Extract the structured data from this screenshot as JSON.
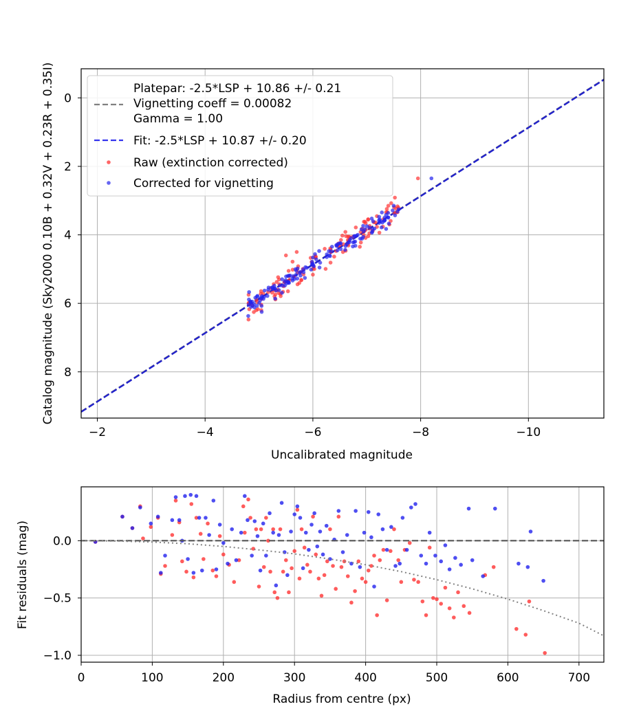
{
  "chart_data": [
    {
      "type": "scatter",
      "xlabel": "Uncalibrated magnitude",
      "ylabel": "Catalog magnitude (Sky2000 0.10B + 0.32V + 0.23R + 0.35I)",
      "xlim": [
        -1.7,
        -11.4
      ],
      "ylim": [
        9.35,
        -0.85
      ],
      "x_inverted": true,
      "y_inverted": true,
      "xticks": [
        -2,
        -4,
        -6,
        -8,
        -10
      ],
      "xtick_labels": [
        "−2",
        "−4",
        "−6",
        "−8",
        "−10"
      ],
      "yticks": [
        0,
        2,
        4,
        6,
        8
      ],
      "ytick_labels": [
        "0",
        "2",
        "4",
        "6",
        "8"
      ],
      "grid": true,
      "legend_placement": "upper-left",
      "legend": [
        {
          "label": "Platepar: -2.5*LSP + 10.86 +/- 0.21\nVignetting coeff = 0.00082\nGamma = 1.00",
          "style": "dashed",
          "color": "#808080"
        },
        {
          "label": "Fit: -2.5*LSP + 10.87 +/- 0.20",
          "style": "dashed",
          "color": "#3333ee"
        },
        {
          "label": "Raw (extinction corrected)",
          "style": "marker",
          "color": "#ff3333"
        },
        {
          "label": "Corrected for vignetting",
          "style": "marker",
          "color": "#3333ee"
        }
      ],
      "series": [
        {
          "name": "Platepar: -2.5*LSP + 10.86 +/- 0.21",
          "kind": "line",
          "slope": 1,
          "intercept": 10.86,
          "color": "#808080"
        },
        {
          "name": "Fit: -2.5*LSP + 10.87 +/- 0.20",
          "kind": "line",
          "slope": 1,
          "intercept": 10.87,
          "color": "#2222cc"
        },
        {
          "name": "Raw (extinction corrected)",
          "kind": "scatter",
          "color": "#ff3333",
          "cluster": {
            "x_range": [
              -4.8,
              -7.6
            ],
            "intercept": 10.87,
            "spread": 0.35,
            "count": 130
          },
          "extra_points": [
            [
              -7.95,
              2.35
            ],
            [
              -7.4,
              3.15
            ],
            [
              -4.95,
              6.2
            ],
            [
              -5.5,
              4.6
            ],
            [
              -5.7,
              4.5
            ]
          ]
        },
        {
          "name": "Corrected for vignetting",
          "kind": "scatter",
          "color": "#2222ee",
          "cluster": {
            "x_range": [
              -4.8,
              -7.6
            ],
            "intercept": 10.87,
            "spread": 0.2,
            "count": 150
          },
          "extra_points": [
            [
              -8.2,
              2.35
            ],
            [
              -7.5,
              3.15
            ],
            [
              -5.05,
              6.25
            ]
          ]
        }
      ]
    },
    {
      "type": "scatter",
      "xlabel": "Radius from centre (px)",
      "ylabel": "Fit residuals (mag)",
      "xlim": [
        0,
        735
      ],
      "ylim": [
        -1.06,
        0.47
      ],
      "xticks": [
        0,
        100,
        200,
        300,
        400,
        500,
        600,
        700
      ],
      "xtick_labels": [
        "0",
        "100",
        "200",
        "300",
        "400",
        "500",
        "600",
        "700"
      ],
      "yticks": [
        0.0,
        -0.5,
        -1.0
      ],
      "ytick_labels": [
        "0.0",
        "−0.5",
        "−1.0"
      ],
      "grid": true,
      "series": [
        {
          "name": "Zero line",
          "kind": "line",
          "style": "dashed",
          "color": "#555555",
          "points": [
            [
              0,
              0
            ],
            [
              735,
              0
            ]
          ]
        },
        {
          "name": "Vignetting model",
          "kind": "line",
          "style": "dotted",
          "color": "#808080",
          "points": [
            [
              0,
              0
            ],
            [
              50,
              -0.003
            ],
            [
              100,
              -0.012
            ],
            [
              150,
              -0.027
            ],
            [
              200,
              -0.05
            ],
            [
              250,
              -0.08
            ],
            [
              300,
              -0.115
            ],
            [
              350,
              -0.16
            ],
            [
              400,
              -0.21
            ],
            [
              450,
              -0.27
            ],
            [
              500,
              -0.34
            ],
            [
              550,
              -0.42
            ],
            [
              600,
              -0.51
            ],
            [
              650,
              -0.61
            ],
            [
              700,
              -0.72
            ],
            [
              735,
              -0.83
            ]
          ]
        },
        {
          "name": "Raw (extinction corrected)",
          "kind": "scatter",
          "color": "#ff3333",
          "points": [
            [
              20,
              -0.01
            ],
            [
              58,
              0.21
            ],
            [
              72,
              0.11
            ],
            [
              83,
              0.3
            ],
            [
              87,
              0.02
            ],
            [
              98,
              0.12
            ],
            [
              108,
              0.2
            ],
            [
              112,
              -0.29
            ],
            [
              118,
              -0.22
            ],
            [
              128,
              0.05
            ],
            [
              133,
              0.35
            ],
            [
              138,
              0.16
            ],
            [
              142,
              -0.18
            ],
            [
              148,
              -0.27
            ],
            [
              155,
              0.32
            ],
            [
              158,
              -0.32
            ],
            [
              162,
              0.2
            ],
            [
              168,
              0.06
            ],
            [
              172,
              -0.16
            ],
            [
              178,
              0.15
            ],
            [
              185,
              -0.26
            ],
            [
              190,
              -0.31
            ],
            [
              195,
              0.04
            ],
            [
              200,
              -0.12
            ],
            [
              208,
              -0.21
            ],
            [
              215,
              -0.36
            ],
            [
              222,
              -0.17
            ],
            [
              228,
              0.3
            ],
            [
              230,
              0.07
            ],
            [
              235,
              0.36
            ],
            [
              238,
              0.2
            ],
            [
              242,
              -0.07
            ],
            [
              246,
              0.1
            ],
            [
              250,
              -0.4
            ],
            [
              253,
              0.1
            ],
            [
              257,
              -0.23
            ],
            [
              260,
              0.2
            ],
            [
              263,
              0.0
            ],
            [
              266,
              -0.27
            ],
            [
              270,
              0.1
            ],
            [
              272,
              -0.45
            ],
            [
              276,
              -0.5
            ],
            [
              280,
              0.1
            ],
            [
              284,
              -0.27
            ],
            [
              288,
              -0.17
            ],
            [
              292,
              -0.45
            ],
            [
              296,
              -0.24
            ],
            [
              300,
              -0.09
            ],
            [
              304,
              0.27
            ],
            [
              307,
              -0.33
            ],
            [
              310,
              0.1
            ],
            [
              314,
              -0.06
            ],
            [
              318,
              -0.21
            ],
            [
              322,
              -0.27
            ],
            [
              326,
              0.21
            ],
            [
              330,
              -0.12
            ],
            [
              334,
              -0.33
            ],
            [
              338,
              -0.48
            ],
            [
              342,
              -0.3
            ],
            [
              346,
              -0.18
            ],
            [
              350,
              0.1
            ],
            [
              354,
              -0.22
            ],
            [
              358,
              -0.42
            ],
            [
              362,
              0.21
            ],
            [
              366,
              -0.23
            ],
            [
              370,
              -0.18
            ],
            [
              375,
              -0.31
            ],
            [
              380,
              -0.54
            ],
            [
              385,
              -0.44
            ],
            [
              390,
              -0.18
            ],
            [
              395,
              -0.33
            ],
            [
              400,
              -0.36
            ],
            [
              404,
              -0.26
            ],
            [
              408,
              -0.22
            ],
            [
              412,
              -0.13
            ],
            [
              416,
              -0.65
            ],
            [
              420,
              -0.17
            ],
            [
              425,
              -0.08
            ],
            [
              430,
              -0.52
            ],
            [
              435,
              -0.09
            ],
            [
              440,
              0.1
            ],
            [
              446,
              -0.17
            ],
            [
              450,
              -0.36
            ],
            [
              455,
              -0.08
            ],
            [
              462,
              -0.02
            ],
            [
              468,
              -0.34
            ],
            [
              474,
              -0.36
            ],
            [
              480,
              -0.53
            ],
            [
              485,
              -0.65
            ],
            [
              490,
              -0.06
            ],
            [
              495,
              -0.5
            ],
            [
              500,
              -0.51
            ],
            [
              506,
              -0.55
            ],
            [
              512,
              -0.41
            ],
            [
              518,
              -0.59
            ],
            [
              524,
              -0.67
            ],
            [
              530,
              -0.45
            ],
            [
              538,
              -0.57
            ],
            [
              546,
              -0.63
            ],
            [
              568,
              -0.3
            ],
            [
              580,
              -0.23
            ],
            [
              612,
              -0.77
            ],
            [
              625,
              -0.82
            ],
            [
              630,
              -0.53
            ],
            [
              652,
              -0.98
            ]
          ]
        },
        {
          "name": "Corrected for vignetting",
          "kind": "scatter",
          "color": "#2222ee",
          "points": [
            [
              20,
              -0.01
            ],
            [
              58,
              0.21
            ],
            [
              72,
              0.11
            ],
            [
              83,
              0.29
            ],
            [
              98,
              0.15
            ],
            [
              108,
              0.21
            ],
            [
              112,
              -0.28
            ],
            [
              118,
              -0.13
            ],
            [
              128,
              0.18
            ],
            [
              133,
              0.38
            ],
            [
              138,
              0.18
            ],
            [
              142,
              0.0
            ],
            [
              146,
              0.39
            ],
            [
              150,
              -0.16
            ],
            [
              154,
              0.4
            ],
            [
              158,
              -0.28
            ],
            [
              162,
              0.39
            ],
            [
              166,
              0.2
            ],
            [
              170,
              -0.26
            ],
            [
              175,
              0.2
            ],
            [
              180,
              0.05
            ],
            [
              186,
              0.35
            ],
            [
              190,
              -0.25
            ],
            [
              195,
              0.14
            ],
            [
              200,
              -0.02
            ],
            [
              206,
              -0.2
            ],
            [
              212,
              0.1
            ],
            [
              218,
              -0.17
            ],
            [
              225,
              0.07
            ],
            [
              230,
              0.39
            ],
            [
              234,
              0.18
            ],
            [
              240,
              -0.13
            ],
            [
              244,
              0.17
            ],
            [
              248,
              0.04
            ],
            [
              252,
              -0.26
            ],
            [
              256,
              0.15
            ],
            [
              260,
              -0.13
            ],
            [
              265,
              0.24
            ],
            [
              270,
              0.07
            ],
            [
              274,
              -0.39
            ],
            [
              278,
              0.05
            ],
            [
              282,
              0.33
            ],
            [
              286,
              -0.1
            ],
            [
              290,
              -0.3
            ],
            [
              295,
              0.08
            ],
            [
              300,
              0.23
            ],
            [
              304,
              0.3
            ],
            [
              308,
              0.2
            ],
            [
              312,
              -0.24
            ],
            [
              316,
              0.07
            ],
            [
              320,
              -0.08
            ],
            [
              324,
              0.14
            ],
            [
              328,
              0.24
            ],
            [
              332,
              -0.05
            ],
            [
              336,
              0.08
            ],
            [
              340,
              -0.12
            ],
            [
              345,
              0.13
            ],
            [
              350,
              -0.16
            ],
            [
              356,
              0.01
            ],
            [
              362,
              0.26
            ],
            [
              368,
              -0.1
            ],
            [
              374,
              0.05
            ],
            [
              380,
              -0.2
            ],
            [
              386,
              0.26
            ],
            [
              392,
              -0.23
            ],
            [
              398,
              0.07
            ],
            [
              404,
              0.25
            ],
            [
              408,
              0.03
            ],
            [
              412,
              -0.4
            ],
            [
              418,
              0.23
            ],
            [
              424,
              0.1
            ],
            [
              430,
              -0.08
            ],
            [
              436,
              0.12
            ],
            [
              442,
              -0.22
            ],
            [
              448,
              -0.2
            ],
            [
              452,
              0.2
            ],
            [
              458,
              -0.08
            ],
            [
              464,
              0.29
            ],
            [
              470,
              0.32
            ],
            [
              478,
              -0.13
            ],
            [
              485,
              -0.2
            ],
            [
              490,
              0.07
            ],
            [
              498,
              -0.13
            ],
            [
              506,
              -0.18
            ],
            [
              512,
              -0.04
            ],
            [
              518,
              -0.25
            ],
            [
              526,
              -0.15
            ],
            [
              534,
              -0.21
            ],
            [
              545,
              0.28
            ],
            [
              550,
              -0.17
            ],
            [
              565,
              -0.31
            ],
            [
              582,
              0.28
            ],
            [
              615,
              -0.2
            ],
            [
              628,
              -0.23
            ],
            [
              632,
              0.08
            ],
            [
              650,
              -0.35
            ]
          ]
        }
      ]
    }
  ]
}
